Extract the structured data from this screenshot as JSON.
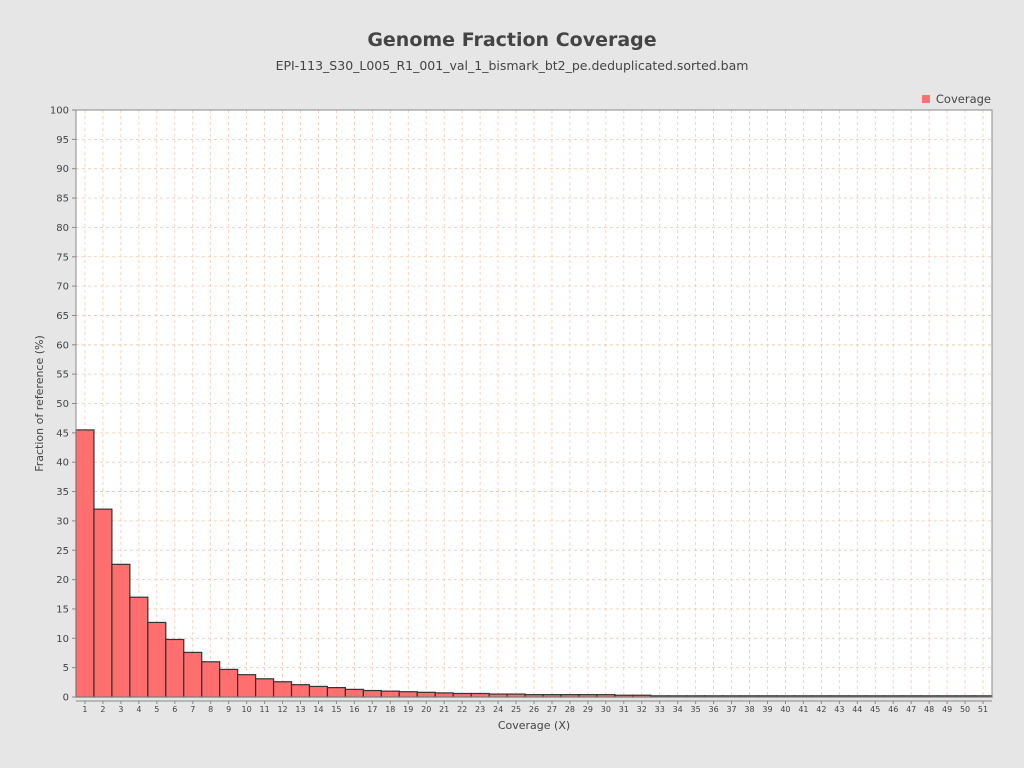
{
  "chart_data": {
    "type": "bar",
    "title": "Genome Fraction Coverage",
    "subtitle": "EPI-113_S30_L005_R1_001_val_1_bismark_bt2_pe.deduplicated.sorted.bam",
    "xlabel": "Coverage (X)",
    "ylabel": "Fraction of reference (%)",
    "ylim": [
      0,
      100
    ],
    "yticks": [
      0,
      5,
      10,
      15,
      20,
      25,
      30,
      35,
      40,
      45,
      50,
      55,
      60,
      65,
      70,
      75,
      80,
      85,
      90,
      95,
      100
    ],
    "grid": true,
    "legend_position": "top-right",
    "categories": [
      "1",
      "2",
      "3",
      "4",
      "5",
      "6",
      "7",
      "8",
      "9",
      "10",
      "11",
      "12",
      "13",
      "14",
      "15",
      "16",
      "17",
      "18",
      "19",
      "20",
      "21",
      "22",
      "23",
      "24",
      "25",
      "26",
      "27",
      "28",
      "29",
      "30",
      "31",
      "32",
      "33",
      "34",
      "35",
      "36",
      "37",
      "38",
      "39",
      "40",
      "41",
      "42",
      "43",
      "44",
      "45",
      "46",
      "47",
      "48",
      "49",
      "50",
      "51"
    ],
    "series": [
      {
        "name": "Coverage",
        "color": "#ff6f6f",
        "values": [
          45.5,
          32.0,
          22.6,
          17.0,
          12.7,
          9.8,
          7.6,
          6.0,
          4.7,
          3.8,
          3.1,
          2.6,
          2.1,
          1.8,
          1.6,
          1.3,
          1.1,
          1.0,
          0.9,
          0.8,
          0.7,
          0.6,
          0.6,
          0.5,
          0.5,
          0.4,
          0.4,
          0.4,
          0.4,
          0.4,
          0.3,
          0.3,
          0.2,
          0.2,
          0.2,
          0.2,
          0.2,
          0.2,
          0.2,
          0.2,
          0.2,
          0.2,
          0.2,
          0.2,
          0.2,
          0.2,
          0.2,
          0.2,
          0.2,
          0.2,
          0.2
        ]
      }
    ]
  }
}
